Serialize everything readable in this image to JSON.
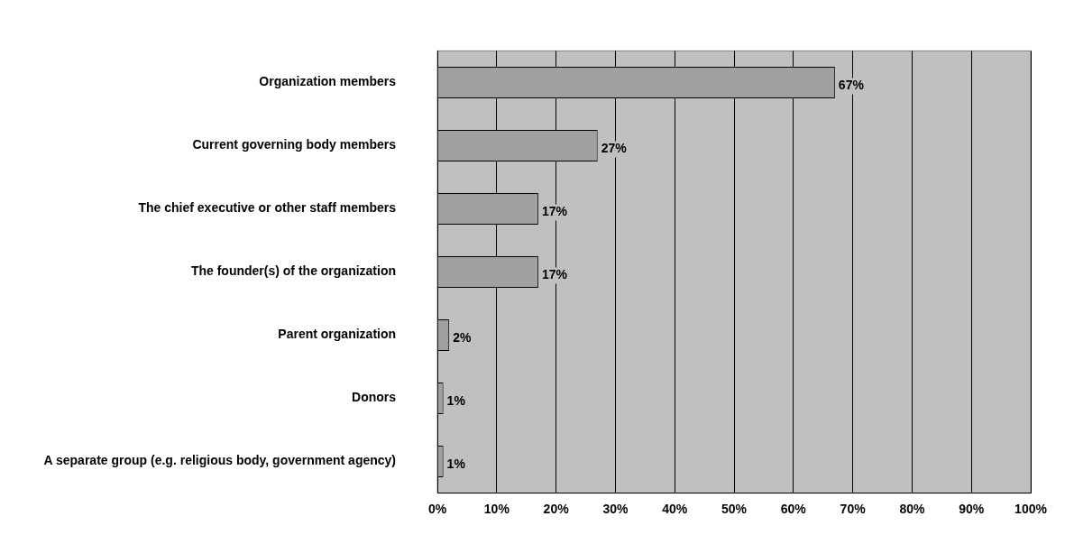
{
  "chart_data": {
    "type": "bar",
    "orientation": "horizontal",
    "categories": [
      "Organization members",
      "Current governing body members",
      "The chief executive or other staff members",
      "The founder(s) of the organization",
      "Parent organization",
      "Donors",
      "A separate group (e.g. religious body, government agency)"
    ],
    "values": [
      67,
      27,
      17,
      17,
      2,
      1,
      1
    ],
    "color": "#a0a0a0",
    "value_labels": [
      "67%",
      "27%",
      "17%",
      "17%",
      "2%",
      "1%",
      "1%"
    ],
    "xlim": [
      0,
      100
    ],
    "xticks": [
      {
        "value": 0,
        "label": "0%"
      },
      {
        "value": 10,
        "label": "10%"
      },
      {
        "value": 20,
        "label": "20%"
      },
      {
        "value": 30,
        "label": "30%"
      },
      {
        "value": 40,
        "label": "40%"
      },
      {
        "value": 50,
        "label": "50%"
      },
      {
        "value": 60,
        "label": "60%"
      },
      {
        "value": 70,
        "label": "70%"
      },
      {
        "value": 80,
        "label": "80%"
      },
      {
        "value": 90,
        "label": "90%"
      },
      {
        "value": 100,
        "label": "100%"
      }
    ],
    "grid": "x",
    "legend": false
  }
}
